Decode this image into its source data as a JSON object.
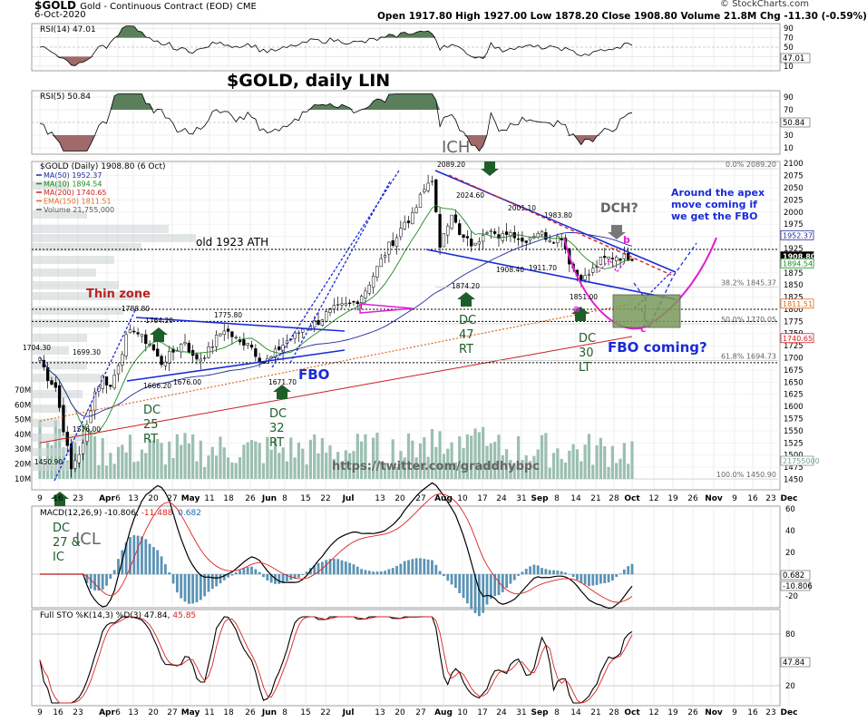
{
  "header": {
    "symbol": "$GOLD",
    "desc": "Gold - Continuous Contract (EOD)",
    "exchange": "CME",
    "date": "6-Oct-2020",
    "quote": "Open 1917.80  High 1927.00  Low 1878.20  Close 1908.80  Volume 21.8M  Chg -11.30 (-0.59%)",
    "credit": "© StockCharts.com"
  },
  "annotations": {
    "main_title": "$GOLD, daily LIN",
    "ich": "ICH",
    "dch": "DCH?",
    "apex_note": [
      "Around the apex",
      "move coming if",
      "we get the FBO"
    ],
    "thin_zone": "Thin zone",
    "old_ath": "old 1923 ATH",
    "fbo": "FBO",
    "fbo_coming": "FBO coming?",
    "icl": "ICL",
    "twitter": "https://twitter.com/graddhybpc",
    "dc_labels": [
      {
        "id": "dc27",
        "lines": [
          "DC",
          "27 &",
          "IC"
        ]
      },
      {
        "id": "dc25",
        "lines": [
          "DC",
          "25",
          "RT"
        ]
      },
      {
        "id": "dc32",
        "lines": [
          "DC",
          "32",
          "RT"
        ]
      },
      {
        "id": "dc47",
        "lines": [
          "DC",
          "47",
          "RT"
        ]
      },
      {
        "id": "dc30",
        "lines": [
          "DC",
          "30",
          "LT"
        ]
      }
    ],
    "small_a": "a",
    "small_b": "b",
    "small_c": "c"
  },
  "colors": {
    "ma50": "#1f2b9a",
    "ma10": "#1f8a1f",
    "ma200": "#cc2222",
    "ema150": "#e06820",
    "volume": "#9bbfb0",
    "arrow_green": "#1e5e2a",
    "note_blue": "#1a2bd8",
    "magenta": "#e020d0",
    "rsi_fill_up": "#5a7f5a",
    "rsi_fill_dn": "#a06a6a"
  },
  "panels": {
    "rsi14": {
      "label": "RSI(14) 47.01",
      "last": "47.01",
      "ticks": [
        "90",
        "70",
        "50",
        "30",
        "10"
      ]
    },
    "rsi5": {
      "label": "RSI(5) 50.84",
      "last": "50.84",
      "ticks": [
        "90",
        "70",
        "50",
        "30",
        "10"
      ]
    },
    "price": {
      "label": "$GOLD (Daily) 1908.80 (6 Oct)",
      "legend": [
        {
          "id": "ma50",
          "text": "MA(50) 1952.37"
        },
        {
          "id": "ma10",
          "text": "MA(10) 1894.54"
        },
        {
          "id": "ma200",
          "text": "MA(200) 1740.65"
        },
        {
          "id": "ema150",
          "text": "EMA(150) 1811.51"
        },
        {
          "id": "vol",
          "text": "Volume 21,755,000"
        }
      ],
      "price_ticks": [
        "2100",
        "2075",
        "2050",
        "2025",
        "2000",
        "1975",
        "1950",
        "1925",
        "1900",
        "1875",
        "1850",
        "1825",
        "1800",
        "1775",
        "1750",
        "1725",
        "1700",
        "1675",
        "1650",
        "1625",
        "1600",
        "1575",
        "1550",
        "1525",
        "1500",
        "1475",
        "1450"
      ],
      "volume_ticks": [
        "70M",
        "60M",
        "50M",
        "40M",
        "30M",
        "20M",
        "10M"
      ],
      "badges": [
        {
          "id": "b1952",
          "text": "1952.37"
        },
        {
          "id": "b1908",
          "text": "1908.80"
        },
        {
          "id": "b1894",
          "text": "1894.54"
        },
        {
          "id": "b1811",
          "text": "1811.51"
        },
        {
          "id": "b1740",
          "text": "1740.65"
        },
        {
          "id": "bvol",
          "text": "21755000"
        }
      ],
      "fib": [
        {
          "id": "f0",
          "text": "0.0% 2089.20"
        },
        {
          "id": "f382",
          "text": "38.2% 1845.37"
        },
        {
          "id": "f50",
          "text": "50.0% 1770.05"
        },
        {
          "id": "f618",
          "text": "61.8% 1694.73"
        },
        {
          "id": "f100",
          "text": "100.0% 1450.90"
        }
      ],
      "price_labels": [
        {
          "id": "p2089",
          "text": "2089.20"
        },
        {
          "id": "p2024",
          "text": "2024.60"
        },
        {
          "id": "p2001",
          "text": "2001.10"
        },
        {
          "id": "p1983",
          "text": "1983.80"
        },
        {
          "id": "p1908",
          "text": "1908.40"
        },
        {
          "id": "p1911",
          "text": "1911.70"
        },
        {
          "id": "p1874",
          "text": "1874.20"
        },
        {
          "id": "p1851",
          "text": "1851.00"
        },
        {
          "id": "p1788",
          "text": "1788.80"
        },
        {
          "id": "p1764",
          "text": "1764.20"
        },
        {
          "id": "p1775",
          "text": "1775.80"
        },
        {
          "id": "p1704",
          "text": "1704.30"
        },
        {
          "id": "p1699",
          "text": "1699.30"
        },
        {
          "id": "p1666",
          "text": "1666.20"
        },
        {
          "id": "p1676",
          "text": "1676.00"
        },
        {
          "id": "p1671",
          "text": "1671.70"
        },
        {
          "id": "p1576",
          "text": "1576.00"
        },
        {
          "id": "p1450",
          "text": "1450.90"
        }
      ]
    },
    "macd": {
      "label": "MACD(12,26,9) -10.806, -11.488, 0.682",
      "label_parts": [
        "MACD(12,26,9) -10.806, ",
        "-11.488",
        ", 0.682"
      ],
      "ticks": [
        "60",
        "40",
        "20",
        "-20"
      ],
      "badges": [
        "0.682",
        "-10.806"
      ]
    },
    "sto": {
      "label": "Full STO %K(14,3) %D(3) 47.84, 45.85",
      "label_parts": [
        "Full STO %K(14,3) %D(3) 47.84, ",
        "45.85"
      ],
      "ticks": [
        "80",
        "20"
      ],
      "badge": "47.84"
    }
  },
  "x_axis": [
    "9",
    "16",
    "23",
    "Apr",
    "6",
    "13",
    "20",
    "27",
    "May",
    "11",
    "18",
    "26",
    "Jun",
    "8",
    "15",
    "22",
    "Jul",
    "13",
    "20",
    "27",
    "Aug",
    "10",
    "17",
    "24",
    "31",
    "Sep",
    "8",
    "14",
    "21",
    "28",
    "Oct",
    "12",
    "19",
    "26",
    "Nov",
    "9",
    "16",
    "23",
    "Dec"
  ],
  "chart_data": {
    "type": "line",
    "title": "$GOLD (Daily)",
    "series": [
      {
        "name": "$GOLD (Daily)",
        "x": [
          "Mar 9",
          "Mar 19",
          "Apr 6",
          "Apr 14",
          "Apr 21",
          "May 18",
          "Jun 5",
          "Jun 22",
          "Jul 8",
          "Jul 27",
          "Aug 6",
          "Aug 11",
          "Aug 18",
          "Sep 1",
          "Sep 16",
          "Sep 24",
          "Oct 6"
        ],
        "values": [
          1704.3,
          1450.9,
          1699.3,
          1788.8,
          1666.2,
          1775.8,
          1671.7,
          1775.0,
          1815.0,
          1975.0,
          2089.2,
          1874.2,
          2024.6,
          2001.1,
          1983.8,
          1851.0,
          1908.8
        ]
      }
    ],
    "ylim": [
      1440,
      2110
    ]
  }
}
